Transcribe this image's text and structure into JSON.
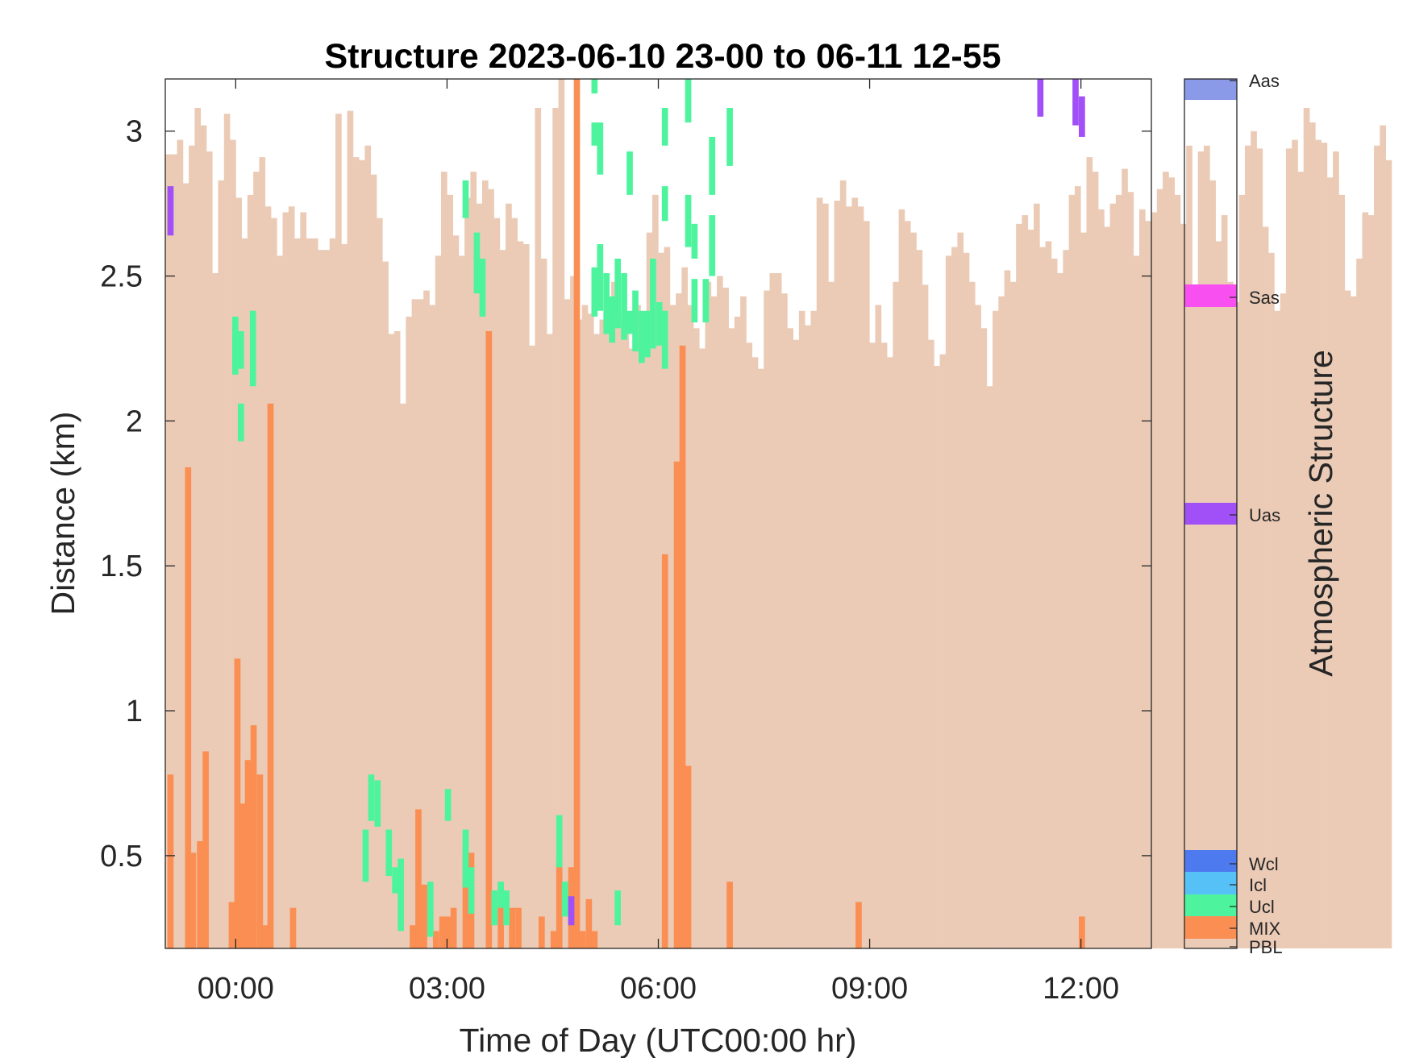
{
  "chart_data": {
    "type": "heatmap",
    "title": "Structure 2023-06-10 23-00 to 06-11 12-55",
    "xlabel": "Time of Day (UTC00:00 hr)",
    "ylabel": "Distance (km)",
    "colorbar_label": "Atmospheric Structure",
    "xlim": [
      -1.0,
      13.0
    ],
    "ylim": [
      0.18,
      3.18
    ],
    "x_ticks": [
      0,
      3,
      6,
      9,
      12
    ],
    "x_tick_labels": [
      "00:00",
      "03:00",
      "06:00",
      "09:00",
      "12:00"
    ],
    "y_ticks": [
      0.5,
      1,
      1.5,
      2,
      2.5,
      3
    ],
    "y_tick_labels": [
      "0.5",
      "1",
      "1.5",
      "2",
      "2.5",
      "3"
    ],
    "grid": false,
    "profile_interval_hours": 0.0833,
    "categories": [
      {
        "code": "PBL",
        "color": "#EBCBB6"
      },
      {
        "code": "MIX",
        "color": "#FA8E53"
      },
      {
        "code": "Ucl",
        "color": "#4EF49D"
      },
      {
        "code": "Icl",
        "color": "#56C1F6"
      },
      {
        "code": "Wcl",
        "color": "#4E7AF0"
      },
      {
        "code": "Uas",
        "color": "#A050F6"
      },
      {
        "code": "Sas",
        "color": "#F850F0"
      },
      {
        "code": "Aas",
        "color": "#8A9AE8"
      }
    ],
    "pbl_top_km": [
      2.92,
      2.92,
      2.97,
      2.82,
      2.95,
      3.08,
      3.02,
      2.93,
      2.51,
      2.83,
      3.06,
      2.97,
      2.77,
      2.63,
      2.78,
      2.86,
      2.91,
      2.74,
      2.7,
      2.57,
      2.72,
      2.74,
      2.63,
      2.72,
      2.63,
      2.63,
      2.59,
      2.59,
      2.63,
      3.06,
      2.61,
      3.07,
      2.91,
      2.9,
      2.95,
      2.85,
      2.7,
      2.55,
      2.3,
      2.31,
      2.06,
      2.36,
      2.42,
      2.42,
      2.45,
      2.4,
      2.57,
      2.86,
      2.78,
      2.64,
      2.57,
      2.77,
      2.86,
      2.75,
      2.83,
      2.8,
      2.7,
      2.59,
      2.75,
      2.7,
      2.62,
      2.61,
      2.26,
      3.08,
      2.56,
      2.3,
      3.08,
      3.18,
      2.42,
      2.5,
      2.35,
      2.4,
      2.37,
      2.3,
      2.35,
      2.38,
      2.48,
      2.37,
      2.3,
      2.25,
      2.4,
      2.33,
      2.65,
      2.78,
      2.58,
      2.6,
      2.4,
      2.44,
      2.53,
      2.4,
      2.32,
      2.25,
      2.48,
      2.43,
      2.5,
      2.46,
      2.32,
      2.36,
      2.43,
      2.27,
      2.22,
      2.18,
      2.45,
      2.51,
      2.51,
      2.44,
      2.32,
      2.28,
      2.38,
      2.33,
      2.38,
      2.77,
      2.75,
      2.48,
      2.76,
      2.83,
      2.74,
      2.77,
      2.74,
      2.69,
      2.27,
      2.4,
      2.27,
      2.22,
      2.48,
      2.73,
      2.69,
      2.65,
      2.59,
      2.47,
      2.28,
      2.19,
      2.23,
      2.57,
      2.6,
      2.65,
      2.58,
      2.48,
      2.4,
      2.32,
      2.12,
      2.38,
      2.43,
      2.52,
      2.48,
      2.68,
      2.71,
      2.66,
      2.75,
      2.6,
      2.62,
      2.56,
      2.51,
      2.59,
      2.78,
      2.81,
      2.65,
      2.91,
      2.86,
      2.73,
      2.67,
      2.75,
      2.78,
      2.87,
      2.79,
      2.57,
      2.73,
      2.69,
      2.72,
      2.8,
      2.86,
      2.84,
      2.78,
      2.68,
      2.95,
      2.45,
      2.93,
      2.95,
      2.83,
      2.62,
      2.71,
      2.48,
      2.41,
      2.78,
      2.95,
      3.0,
      2.94,
      2.67,
      2.58,
      2.38,
      2.44,
      2.94,
      2.97,
      2.86,
      3.08,
      3.03,
      2.97,
      2.96,
      2.84,
      2.93,
      2.78,
      2.45,
      2.43,
      2.56,
      2.72,
      2.71,
      2.95,
      3.02,
      2.9
    ],
    "mix_segments": [
      {
        "t": -0.97,
        "top": 0.78
      },
      {
        "t": -0.72,
        "top": 1.84
      },
      {
        "t": -0.65,
        "top": 0.51
      },
      {
        "t": -0.55,
        "top": 0.55
      },
      {
        "t": -0.47,
        "top": 0.86
      },
      {
        "t": -0.1,
        "top": 0.34
      },
      {
        "t": -0.02,
        "top": 1.18
      },
      {
        "t": 0.06,
        "top": 0.68
      },
      {
        "t": 0.13,
        "top": 0.83
      },
      {
        "t": 0.21,
        "top": 0.95
      },
      {
        "t": 0.3,
        "top": 0.78
      },
      {
        "t": 0.38,
        "top": 0.26
      },
      {
        "t": 0.45,
        "top": 2.06
      },
      {
        "t": 0.77,
        "top": 0.32
      },
      {
        "t": 2.47,
        "top": 0.26
      },
      {
        "t": 2.55,
        "top": 0.66
      },
      {
        "t": 2.63,
        "top": 0.4
      },
      {
        "t": 2.8,
        "top": 0.24
      },
      {
        "t": 2.89,
        "top": 0.29
      },
      {
        "t": 2.97,
        "top": 0.29
      },
      {
        "t": 3.05,
        "top": 0.32
      },
      {
        "t": 3.22,
        "top": 0.51
      },
      {
        "t": 3.3,
        "top": 0.51
      },
      {
        "t": 3.55,
        "top": 2.31
      },
      {
        "t": 3.72,
        "top": 0.39
      },
      {
        "t": 3.88,
        "top": 0.32
      },
      {
        "t": 3.97,
        "top": 0.32
      },
      {
        "t": 4.3,
        "top": 0.29
      },
      {
        "t": 4.47,
        "top": 0.24
      },
      {
        "t": 4.55,
        "top": 0.48
      },
      {
        "t": 4.72,
        "top": 0.46
      },
      {
        "t": 4.8,
        "top": 3.18
      },
      {
        "t": 4.88,
        "top": 0.24
      },
      {
        "t": 4.97,
        "top": 0.35
      },
      {
        "t": 5.05,
        "top": 0.24
      },
      {
        "t": 6.05,
        "top": 1.54
      },
      {
        "t": 6.22,
        "top": 1.86
      },
      {
        "t": 6.3,
        "top": 2.26
      },
      {
        "t": 6.38,
        "top": 0.81
      },
      {
        "t": 6.97,
        "top": 0.41
      },
      {
        "t": 8.8,
        "top": 0.34
      },
      {
        "t": 11.97,
        "top": 0.29
      }
    ],
    "ucl_segments": [
      {
        "t": -0.05,
        "bottom": 2.16,
        "top": 2.36
      },
      {
        "t": 0.03,
        "bottom": 2.18,
        "top": 2.31
      },
      {
        "t": 0.03,
        "bottom": 1.93,
        "top": 2.06
      },
      {
        "t": 0.2,
        "bottom": 2.12,
        "top": 2.38
      },
      {
        "t": 1.8,
        "bottom": 0.41,
        "top": 0.59
      },
      {
        "t": 1.88,
        "bottom": 0.62,
        "top": 0.78
      },
      {
        "t": 1.97,
        "bottom": 0.6,
        "top": 0.76
      },
      {
        "t": 2.13,
        "bottom": 0.43,
        "top": 0.59
      },
      {
        "t": 2.22,
        "bottom": 0.37,
        "top": 0.46
      },
      {
        "t": 2.3,
        "bottom": 0.24,
        "top": 0.49
      },
      {
        "t": 2.72,
        "bottom": 0.22,
        "top": 0.41
      },
      {
        "t": 2.97,
        "bottom": 0.62,
        "top": 0.73
      },
      {
        "t": 3.22,
        "bottom": 0.39,
        "top": 0.59
      },
      {
        "t": 3.3,
        "bottom": 0.3,
        "top": 0.46
      },
      {
        "t": 3.63,
        "bottom": 0.26,
        "top": 0.38
      },
      {
        "t": 3.72,
        "bottom": 0.32,
        "top": 0.41
      },
      {
        "t": 3.8,
        "bottom": 0.26,
        "top": 0.38
      },
      {
        "t": 3.22,
        "bottom": 2.7,
        "top": 2.83
      },
      {
        "t": 3.38,
        "bottom": 2.44,
        "top": 2.65
      },
      {
        "t": 3.46,
        "bottom": 2.36,
        "top": 2.56
      },
      {
        "t": 4.55,
        "bottom": 0.46,
        "top": 0.64
      },
      {
        "t": 4.63,
        "bottom": 0.29,
        "top": 0.41
      },
      {
        "t": 5.38,
        "bottom": 0.26,
        "top": 0.38
      },
      {
        "t": 5.05,
        "bottom": 3.13,
        "top": 3.18
      },
      {
        "t": 5.05,
        "bottom": 2.95,
        "top": 3.03
      },
      {
        "t": 5.13,
        "bottom": 2.85,
        "top": 3.03
      },
      {
        "t": 5.55,
        "bottom": 2.78,
        "top": 2.93
      },
      {
        "t": 6.05,
        "bottom": 2.95,
        "top": 3.08
      },
      {
        "t": 6.05,
        "bottom": 2.69,
        "top": 2.81
      },
      {
        "t": 5.05,
        "bottom": 2.36,
        "top": 2.53
      },
      {
        "t": 5.13,
        "bottom": 2.38,
        "top": 2.61
      },
      {
        "t": 5.22,
        "bottom": 2.3,
        "top": 2.51
      },
      {
        "t": 5.3,
        "bottom": 2.27,
        "top": 2.43
      },
      {
        "t": 5.38,
        "bottom": 2.32,
        "top": 2.56
      },
      {
        "t": 5.47,
        "bottom": 2.28,
        "top": 2.51
      },
      {
        "t": 5.55,
        "bottom": 2.3,
        "top": 2.38
      },
      {
        "t": 5.63,
        "bottom": 2.24,
        "top": 2.45
      },
      {
        "t": 5.72,
        "bottom": 2.2,
        "top": 2.38
      },
      {
        "t": 5.8,
        "bottom": 2.22,
        "top": 2.38
      },
      {
        "t": 5.88,
        "bottom": 2.25,
        "top": 2.56
      },
      {
        "t": 5.97,
        "bottom": 2.26,
        "top": 2.41
      },
      {
        "t": 6.05,
        "bottom": 2.18,
        "top": 2.38
      },
      {
        "t": 6.38,
        "bottom": 3.03,
        "top": 3.18
      },
      {
        "t": 6.38,
        "bottom": 2.6,
        "top": 2.78
      },
      {
        "t": 6.47,
        "bottom": 2.56,
        "top": 2.68
      },
      {
        "t": 6.47,
        "bottom": 2.34,
        "top": 2.49
      },
      {
        "t": 6.63,
        "bottom": 2.34,
        "top": 2.49
      },
      {
        "t": 6.72,
        "bottom": 2.78,
        "top": 2.98
      },
      {
        "t": 6.72,
        "bottom": 2.5,
        "top": 2.71
      },
      {
        "t": 6.97,
        "bottom": 2.88,
        "top": 3.08
      }
    ],
    "uas_segments": [
      {
        "t": -0.97,
        "bottom": 2.64,
        "top": 2.81
      },
      {
        "t": 4.72,
        "bottom": 0.26,
        "top": 0.36
      },
      {
        "t": 11.38,
        "bottom": 3.05,
        "top": 3.18
      },
      {
        "t": 11.88,
        "bottom": 3.02,
        "top": 3.18
      },
      {
        "t": 11.97,
        "bottom": 2.98,
        "top": 3.12
      }
    ],
    "colorbar": {
      "ticks": [
        {
          "code": "Aas",
          "label": "Aas"
        },
        {
          "code": "Sas",
          "label": "Sas"
        },
        {
          "code": "Uas",
          "label": "Uas"
        },
        {
          "code": "Wcl",
          "label": "Wcl"
        },
        {
          "code": "Icl",
          "label": "Icl"
        },
        {
          "code": "Ucl",
          "label": "Ucl"
        },
        {
          "code": "MIX",
          "label": "MIX"
        },
        {
          "code": "PBL",
          "label": "PBL"
        }
      ]
    }
  }
}
